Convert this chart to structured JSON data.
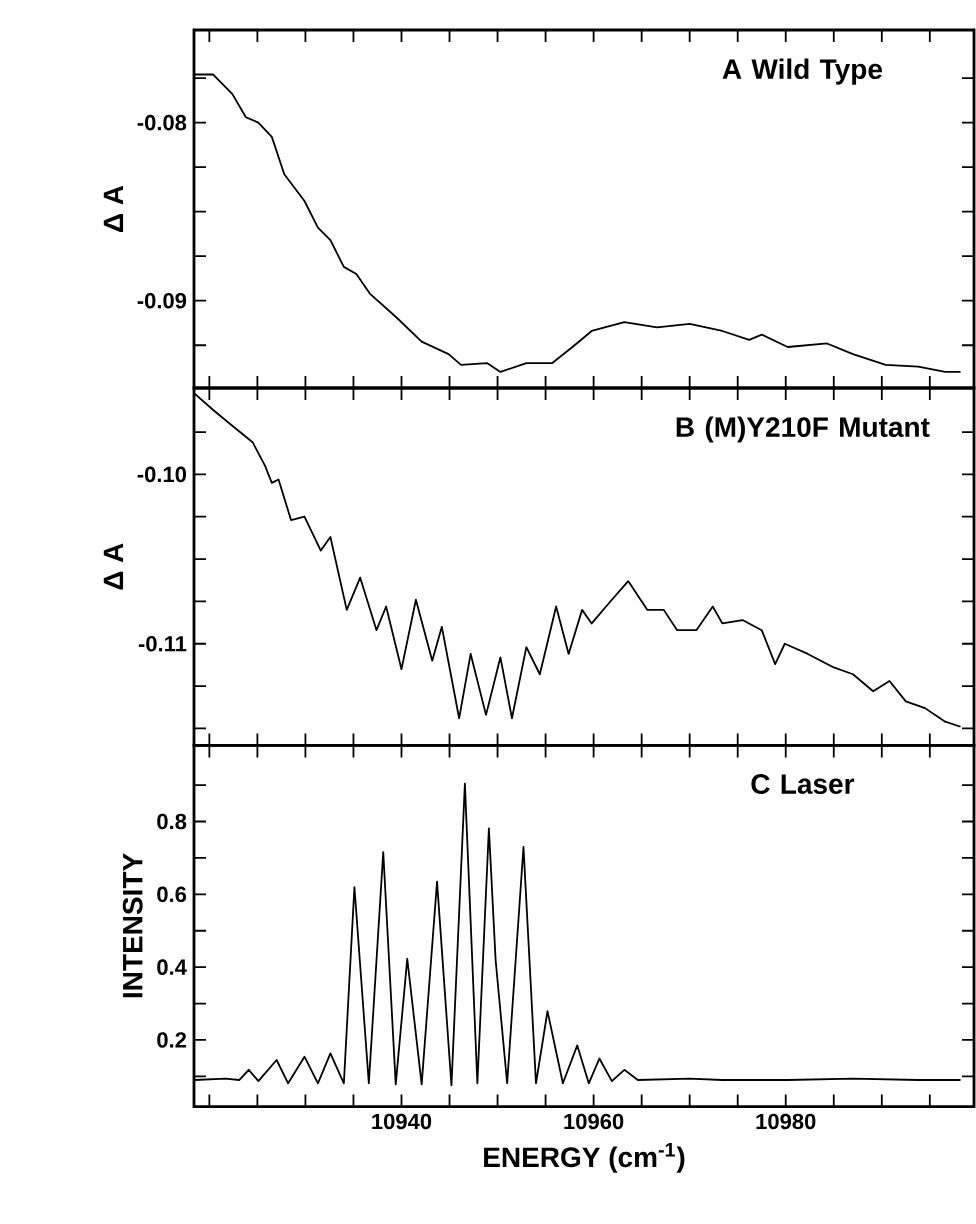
{
  "chart_data": [
    {
      "type": "line",
      "ylabel": "Δ A",
      "annotations": [
        "A  Wild Type"
      ],
      "marker": "none",
      "tick_labels": "y",
      "xlim": [
        10918.4,
        10999.6
      ],
      "ylim": [
        -0.0949,
        -0.0748
      ],
      "xticks": [
        {
          "value": 10920,
          "label": null
        },
        {
          "value": 10925,
          "label": null
        },
        {
          "value": 10930,
          "label": null
        },
        {
          "value": 10935,
          "label": null
        },
        10940,
        {
          "value": 10945,
          "label": null
        },
        {
          "value": 10950,
          "label": null
        },
        {
          "value": 10955,
          "label": null
        },
        10960,
        {
          "value": 10965,
          "label": null
        },
        {
          "value": 10970,
          "label": null
        },
        {
          "value": 10975,
          "label": null
        },
        10980,
        {
          "value": 10985,
          "label": null
        },
        {
          "value": 10990,
          "label": null
        },
        {
          "value": 10995,
          "label": null
        }
      ],
      "yticks": [
        {
          "value": -0.0775,
          "label": null
        },
        -0.08,
        {
          "value": -0.0825,
          "label": null
        },
        {
          "value": -0.085,
          "label": null
        },
        {
          "value": -0.0875,
          "label": null
        },
        -0.09,
        {
          "value": -0.0925,
          "label": null
        }
      ],
      "x": [
        10918.4,
        10920.4,
        10922.4,
        10923.8,
        10925.1,
        10926.5,
        10927.8,
        10929.9,
        10931.3,
        10932.6,
        10934.0,
        10935.3,
        10936.7,
        10939.4,
        10942.1,
        10944.9,
        10946.2,
        10948.9,
        10950.3,
        10953.0,
        10955.7,
        10957.8,
        10959.8,
        10963.2,
        10966.6,
        10970.0,
        10973.4,
        10976.2,
        10977.5,
        10980.2,
        10984.3,
        10987.0,
        10990.4,
        10993.8,
        10996.6,
        10998.2
      ],
      "values": [
        -0.0773,
        -0.0773,
        -0.0784,
        -0.0797,
        -0.08,
        -0.0808,
        -0.0829,
        -0.0844,
        -0.0859,
        -0.0866,
        -0.0881,
        -0.0885,
        -0.0896,
        -0.0909,
        -0.0923,
        -0.093,
        -0.0936,
        -0.0935,
        -0.094,
        -0.0935,
        -0.0935,
        -0.0926,
        -0.0917,
        -0.0912,
        -0.0915,
        -0.0913,
        -0.0917,
        -0.0922,
        -0.0919,
        -0.0926,
        -0.0924,
        -0.093,
        -0.0936,
        -0.0937,
        -0.094,
        -0.094
      ]
    },
    {
      "type": "line",
      "ylabel": "Δ A",
      "annotations": [
        "B  (M)Y210F Mutant"
      ],
      "marker": "none",
      "tick_labels": "y",
      "xlim": [
        10918.4,
        10999.6
      ],
      "ylim": [
        -0.116,
        -0.0949
      ],
      "xticks": [
        {
          "value": 10920,
          "label": null
        },
        {
          "value": 10925,
          "label": null
        },
        {
          "value": 10930,
          "label": null
        },
        {
          "value": 10935,
          "label": null
        },
        10940,
        {
          "value": 10945,
          "label": null
        },
        {
          "value": 10950,
          "label": null
        },
        {
          "value": 10955,
          "label": null
        },
        10960,
        {
          "value": 10965,
          "label": null
        },
        {
          "value": 10970,
          "label": null
        },
        {
          "value": 10975,
          "label": null
        },
        10980,
        {
          "value": 10985,
          "label": null
        },
        {
          "value": 10990,
          "label": null
        },
        {
          "value": 10995,
          "label": null
        }
      ],
      "yticks": [
        {
          "value": -0.0975,
          "label": null
        },
        {
          "value": -0.1,
          "label": "-0.10"
        },
        {
          "value": -0.1025,
          "label": null
        },
        {
          "value": -0.105,
          "label": null
        },
        {
          "value": -0.1075,
          "label": null
        },
        -0.11,
        {
          "value": -0.1125,
          "label": null
        },
        {
          "value": -0.115,
          "label": null
        }
      ],
      "x": [
        10918.4,
        10920.4,
        10922.1,
        10924.5,
        10925.8,
        10926.5,
        10927.2,
        10928.5,
        10929.9,
        10931.6,
        10932.6,
        10934.3,
        10935.7,
        10937.4,
        10938.4,
        10940.0,
        10941.5,
        10943.2,
        10944.2,
        10946.0,
        10947.2,
        10948.8,
        10950.3,
        10951.5,
        10953.0,
        10954.4,
        10956.1,
        10957.4,
        10958.8,
        10959.8,
        10961.9,
        10963.6,
        10965.6,
        10967.3,
        10968.7,
        10970.7,
        10972.4,
        10973.4,
        10975.5,
        10977.5,
        10978.9,
        10979.9,
        10982.3,
        10985.0,
        10987.0,
        10989.1,
        10990.8,
        10992.5,
        10994.5,
        10996.6,
        10998.2
      ],
      "values": [
        -0.0952,
        -0.0962,
        -0.097,
        -0.0981,
        -0.0995,
        -0.1005,
        -0.1003,
        -0.1027,
        -0.1025,
        -0.1045,
        -0.1037,
        -0.108,
        -0.1061,
        -0.1092,
        -0.1078,
        -0.1115,
        -0.1074,
        -0.111,
        -0.109,
        -0.1144,
        -0.1106,
        -0.1142,
        -0.1108,
        -0.1144,
        -0.1102,
        -0.1118,
        -0.1078,
        -0.1106,
        -0.108,
        -0.1088,
        -0.1074,
        -0.1063,
        -0.108,
        -0.108,
        -0.1092,
        -0.1092,
        -0.1078,
        -0.1088,
        -0.1086,
        -0.1092,
        -0.1112,
        -0.11,
        -0.1106,
        -0.1114,
        -0.1118,
        -0.1128,
        -0.1122,
        -0.1134,
        -0.1138,
        -0.1146,
        -0.1149
      ]
    },
    {
      "type": "line",
      "ylabel": "INTENSITY",
      "xlabel": "ENERGY   (cm$^{-1}$)",
      "annotations": [
        "C  Laser"
      ],
      "marker": "none",
      "xlim": [
        10918.4,
        10999.6
      ],
      "ylim": [
        0.017,
        1.009
      ],
      "xticks": [
        {
          "value": 10920,
          "label": null
        },
        {
          "value": 10925,
          "label": null
        },
        {
          "value": 10930,
          "label": null
        },
        {
          "value": 10935,
          "label": null
        },
        10940,
        {
          "value": 10945,
          "label": null
        },
        {
          "value": 10950,
          "label": null
        },
        {
          "value": 10955,
          "label": null
        },
        10960,
        {
          "value": 10965,
          "label": null
        },
        {
          "value": 10970,
          "label": null
        },
        {
          "value": 10975,
          "label": null
        },
        10980,
        {
          "value": 10985,
          "label": null
        },
        {
          "value": 10990,
          "label": null
        },
        {
          "value": 10995,
          "label": null
        }
      ],
      "yticks": [
        {
          "value": 0.1,
          "label": null
        },
        0.2,
        {
          "value": 0.3,
          "label": null
        },
        0.4,
        {
          "value": 0.5,
          "label": null
        },
        0.6,
        {
          "value": 0.7,
          "label": null
        },
        0.8,
        {
          "value": 0.9,
          "label": null
        }
      ],
      "x": [
        10918.4,
        10921.7,
        10923.1,
        10924.1,
        10925.1,
        10927.0,
        10928.2,
        10929.9,
        10931.3,
        10932.6,
        10934.0,
        10935.1,
        10936.6,
        10938.1,
        10939.4,
        10940.6,
        10942.1,
        10943.7,
        10945.2,
        10946.6,
        10947.9,
        10949.1,
        10949.8,
        10951.0,
        10952.7,
        10954.0,
        10955.2,
        10956.8,
        10958.3,
        10959.5,
        10960.6,
        10961.9,
        10963.2,
        10964.6,
        10970.0,
        10973.4,
        10980.2,
        10987.0,
        10993.8,
        10998.2
      ],
      "values": [
        0.09,
        0.094,
        0.09,
        0.118,
        0.087,
        0.145,
        0.081,
        0.154,
        0.081,
        0.163,
        0.081,
        0.62,
        0.081,
        0.716,
        0.078,
        0.423,
        0.078,
        0.635,
        0.075,
        0.904,
        0.081,
        0.781,
        0.419,
        0.081,
        0.73,
        0.081,
        0.279,
        0.081,
        0.185,
        0.081,
        0.149,
        0.087,
        0.118,
        0.09,
        0.094,
        0.09,
        0.09,
        0.094,
        0.09,
        0.09
      ]
    }
  ]
}
